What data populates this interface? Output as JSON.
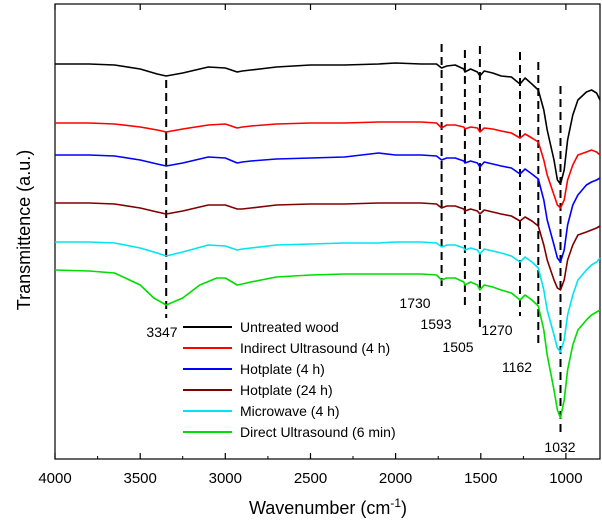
{
  "chart_data": {
    "type": "line",
    "title": "",
    "xlabel_main": "Wavenumber (cm",
    "xlabel_sup": "-1",
    "xlabel_close": ")",
    "ylabel": "Transmittence (a.u.)",
    "xlim": [
      4000,
      800
    ],
    "x_reversed": true,
    "xticks": [
      4000,
      3500,
      3000,
      2500,
      2000,
      1500,
      1000
    ],
    "xtick_labels": [
      "4000",
      "3500",
      "3000",
      "2500",
      "2000",
      "1500",
      "1000"
    ],
    "yticks_shown": false,
    "grid": false,
    "legend_position": "bottom-center",
    "y_units": "arbitrary offset transmittance",
    "series": [
      {
        "name": "Untreated wood",
        "color": "#000000",
        "points": [
          [
            4000,
            64
          ],
          [
            3800,
            64
          ],
          [
            3650,
            65
          ],
          [
            3500,
            69
          ],
          [
            3400,
            74
          ],
          [
            3347,
            76
          ],
          [
            3250,
            73
          ],
          [
            3100,
            67
          ],
          [
            3000,
            68
          ],
          [
            2930,
            72
          ],
          [
            2900,
            71
          ],
          [
            2850,
            70
          ],
          [
            2700,
            67
          ],
          [
            2500,
            65
          ],
          [
            2300,
            65
          ],
          [
            2100,
            64
          ],
          [
            2000,
            63
          ],
          [
            1850,
            64
          ],
          [
            1760,
            64
          ],
          [
            1730,
            68
          ],
          [
            1700,
            66
          ],
          [
            1650,
            65
          ],
          [
            1600,
            69
          ],
          [
            1593,
            72
          ],
          [
            1560,
            69
          ],
          [
            1520,
            72
          ],
          [
            1505,
            76
          ],
          [
            1480,
            71
          ],
          [
            1430,
            73
          ],
          [
            1380,
            76
          ],
          [
            1320,
            77
          ],
          [
            1270,
            84
          ],
          [
            1240,
            78
          ],
          [
            1200,
            84
          ],
          [
            1162,
            90
          ],
          [
            1130,
            110
          ],
          [
            1110,
            130
          ],
          [
            1070,
            160
          ],
          [
            1050,
            180
          ],
          [
            1032,
            184
          ],
          [
            1010,
            170
          ],
          [
            990,
            140
          ],
          [
            960,
            115
          ],
          [
            930,
            100
          ],
          [
            880,
            92
          ],
          [
            850,
            90
          ],
          [
            820,
            93
          ],
          [
            800,
            100
          ]
        ]
      },
      {
        "name": "Indirect Ultrasound (4 h)",
        "color": "#ff0000",
        "points": [
          [
            4000,
            123
          ],
          [
            3800,
            123
          ],
          [
            3650,
            124
          ],
          [
            3500,
            127
          ],
          [
            3400,
            130
          ],
          [
            3347,
            132
          ],
          [
            3250,
            129
          ],
          [
            3100,
            125
          ],
          [
            3000,
            124
          ],
          [
            2930,
            128
          ],
          [
            2900,
            127
          ],
          [
            2850,
            126
          ],
          [
            2700,
            124
          ],
          [
            2500,
            123
          ],
          [
            2300,
            123
          ],
          [
            2100,
            122
          ],
          [
            2000,
            122
          ],
          [
            1850,
            122
          ],
          [
            1760,
            123
          ],
          [
            1730,
            128
          ],
          [
            1700,
            125
          ],
          [
            1650,
            125
          ],
          [
            1600,
            127
          ],
          [
            1593,
            129
          ],
          [
            1560,
            127
          ],
          [
            1520,
            128
          ],
          [
            1505,
            132
          ],
          [
            1480,
            128
          ],
          [
            1430,
            129
          ],
          [
            1380,
            131
          ],
          [
            1320,
            133
          ],
          [
            1270,
            138
          ],
          [
            1240,
            134
          ],
          [
            1200,
            138
          ],
          [
            1162,
            142
          ],
          [
            1130,
            160
          ],
          [
            1110,
            175
          ],
          [
            1070,
            195
          ],
          [
            1050,
            205
          ],
          [
            1032,
            208
          ],
          [
            1010,
            200
          ],
          [
            990,
            180
          ],
          [
            960,
            165
          ],
          [
            930,
            155
          ],
          [
            880,
            152
          ],
          [
            850,
            150
          ],
          [
            820,
            152
          ],
          [
            800,
            155
          ]
        ]
      },
      {
        "name": "Hotplate (4 h)",
        "color": "#0000ff",
        "points": [
          [
            4000,
            155
          ],
          [
            3800,
            155
          ],
          [
            3650,
            156
          ],
          [
            3500,
            160
          ],
          [
            3400,
            164
          ],
          [
            3347,
            166
          ],
          [
            3250,
            163
          ],
          [
            3100,
            157
          ],
          [
            3000,
            158
          ],
          [
            2930,
            163
          ],
          [
            2900,
            162
          ],
          [
            2850,
            161
          ],
          [
            2700,
            159
          ],
          [
            2500,
            158
          ],
          [
            2300,
            157
          ],
          [
            2200,
            155
          ],
          [
            2100,
            153
          ],
          [
            2000,
            155
          ],
          [
            1850,
            155
          ],
          [
            1760,
            156
          ],
          [
            1730,
            160
          ],
          [
            1700,
            158
          ],
          [
            1650,
            158
          ],
          [
            1600,
            161
          ],
          [
            1593,
            163
          ],
          [
            1560,
            161
          ],
          [
            1520,
            163
          ],
          [
            1505,
            167
          ],
          [
            1480,
            162
          ],
          [
            1430,
            164
          ],
          [
            1380,
            166
          ],
          [
            1320,
            168
          ],
          [
            1270,
            174
          ],
          [
            1240,
            169
          ],
          [
            1200,
            174
          ],
          [
            1162,
            179
          ],
          [
            1130,
            200
          ],
          [
            1110,
            220
          ],
          [
            1070,
            245
          ],
          [
            1050,
            258
          ],
          [
            1032,
            262
          ],
          [
            1010,
            250
          ],
          [
            990,
            225
          ],
          [
            960,
            205
          ],
          [
            930,
            195
          ],
          [
            880,
            185
          ],
          [
            850,
            182
          ],
          [
            820,
            180
          ],
          [
            800,
            178
          ]
        ]
      },
      {
        "name": "Hotplate (24 h)",
        "color": "#800000",
        "points": [
          [
            4000,
            203
          ],
          [
            3800,
            203
          ],
          [
            3650,
            204
          ],
          [
            3500,
            208
          ],
          [
            3400,
            212
          ],
          [
            3347,
            214
          ],
          [
            3250,
            211
          ],
          [
            3100,
            205
          ],
          [
            3000,
            205
          ],
          [
            2930,
            209
          ],
          [
            2900,
            209
          ],
          [
            2850,
            208
          ],
          [
            2700,
            205
          ],
          [
            2500,
            204
          ],
          [
            2300,
            204
          ],
          [
            2100,
            203
          ],
          [
            2000,
            203
          ],
          [
            1850,
            203
          ],
          [
            1760,
            204
          ],
          [
            1730,
            208
          ],
          [
            1700,
            206
          ],
          [
            1650,
            206
          ],
          [
            1600,
            209
          ],
          [
            1593,
            211
          ],
          [
            1560,
            209
          ],
          [
            1520,
            211
          ],
          [
            1505,
            214
          ],
          [
            1480,
            210
          ],
          [
            1430,
            212
          ],
          [
            1380,
            214
          ],
          [
            1320,
            216
          ],
          [
            1270,
            221
          ],
          [
            1240,
            217
          ],
          [
            1200,
            221
          ],
          [
            1162,
            226
          ],
          [
            1130,
            245
          ],
          [
            1110,
            260
          ],
          [
            1070,
            280
          ],
          [
            1050,
            288
          ],
          [
            1032,
            290
          ],
          [
            1010,
            280
          ],
          [
            990,
            260
          ],
          [
            960,
            245
          ],
          [
            930,
            235
          ],
          [
            880,
            232
          ],
          [
            850,
            230
          ],
          [
            820,
            228
          ],
          [
            800,
            226
          ]
        ]
      },
      {
        "name": "Microwave (4 h)",
        "color": "#00e5ee",
        "points": [
          [
            4000,
            242
          ],
          [
            3800,
            242
          ],
          [
            3650,
            243
          ],
          [
            3500,
            248
          ],
          [
            3400,
            253
          ],
          [
            3347,
            256
          ],
          [
            3250,
            252
          ],
          [
            3100,
            245
          ],
          [
            3000,
            246
          ],
          [
            2930,
            250
          ],
          [
            2900,
            249
          ],
          [
            2850,
            248
          ],
          [
            2700,
            245
          ],
          [
            2500,
            244
          ],
          [
            2300,
            243
          ],
          [
            2100,
            243
          ],
          [
            2000,
            242
          ],
          [
            1850,
            242
          ],
          [
            1760,
            243
          ],
          [
            1730,
            247
          ],
          [
            1700,
            245
          ],
          [
            1650,
            245
          ],
          [
            1600,
            248
          ],
          [
            1593,
            250
          ],
          [
            1560,
            248
          ],
          [
            1520,
            250
          ],
          [
            1505,
            254
          ],
          [
            1480,
            249
          ],
          [
            1430,
            251
          ],
          [
            1380,
            253
          ],
          [
            1320,
            256
          ],
          [
            1270,
            262
          ],
          [
            1240,
            257
          ],
          [
            1200,
            262
          ],
          [
            1162,
            268
          ],
          [
            1130,
            290
          ],
          [
            1110,
            310
          ],
          [
            1070,
            335
          ],
          [
            1050,
            348
          ],
          [
            1032,
            352
          ],
          [
            1010,
            340
          ],
          [
            990,
            315
          ],
          [
            960,
            295
          ],
          [
            930,
            280
          ],
          [
            880,
            270
          ],
          [
            850,
            265
          ],
          [
            820,
            262
          ],
          [
            800,
            258
          ]
        ]
      },
      {
        "name": "Direct Ultrasound (6 min)",
        "color": "#00dd00",
        "points": [
          [
            4000,
            270
          ],
          [
            3800,
            271
          ],
          [
            3650,
            273
          ],
          [
            3500,
            285
          ],
          [
            3420,
            298
          ],
          [
            3347,
            305
          ],
          [
            3250,
            298
          ],
          [
            3150,
            285
          ],
          [
            3050,
            278
          ],
          [
            3000,
            278
          ],
          [
            2930,
            285
          ],
          [
            2900,
            284
          ],
          [
            2850,
            282
          ],
          [
            2700,
            277
          ],
          [
            2500,
            275
          ],
          [
            2300,
            274
          ],
          [
            2100,
            274
          ],
          [
            2000,
            274
          ],
          [
            1850,
            274
          ],
          [
            1760,
            275
          ],
          [
            1730,
            280
          ],
          [
            1700,
            278
          ],
          [
            1650,
            278
          ],
          [
            1600,
            282
          ],
          [
            1593,
            285
          ],
          [
            1560,
            282
          ],
          [
            1520,
            285
          ],
          [
            1505,
            290
          ],
          [
            1480,
            285
          ],
          [
            1430,
            287
          ],
          [
            1380,
            290
          ],
          [
            1320,
            293
          ],
          [
            1270,
            300
          ],
          [
            1240,
            295
          ],
          [
            1200,
            300
          ],
          [
            1162,
            306
          ],
          [
            1130,
            330
          ],
          [
            1110,
            355
          ],
          [
            1070,
            390
          ],
          [
            1050,
            410
          ],
          [
            1032,
            418
          ],
          [
            1010,
            400
          ],
          [
            990,
            370
          ],
          [
            960,
            345
          ],
          [
            930,
            330
          ],
          [
            880,
            320
          ],
          [
            850,
            315
          ],
          [
            820,
            312
          ],
          [
            800,
            310
          ]
        ]
      }
    ],
    "peaks": [
      {
        "wavenumber": 3347,
        "label": "3347"
      },
      {
        "wavenumber": 1730,
        "label": "1730"
      },
      {
        "wavenumber": 1593,
        "label": "1593"
      },
      {
        "wavenumber": 1505,
        "label": "1505"
      },
      {
        "wavenumber": 1270,
        "label": "1270"
      },
      {
        "wavenumber": 1162,
        "label": "1162"
      },
      {
        "wavenumber": 1032,
        "label": "1032"
      }
    ]
  }
}
